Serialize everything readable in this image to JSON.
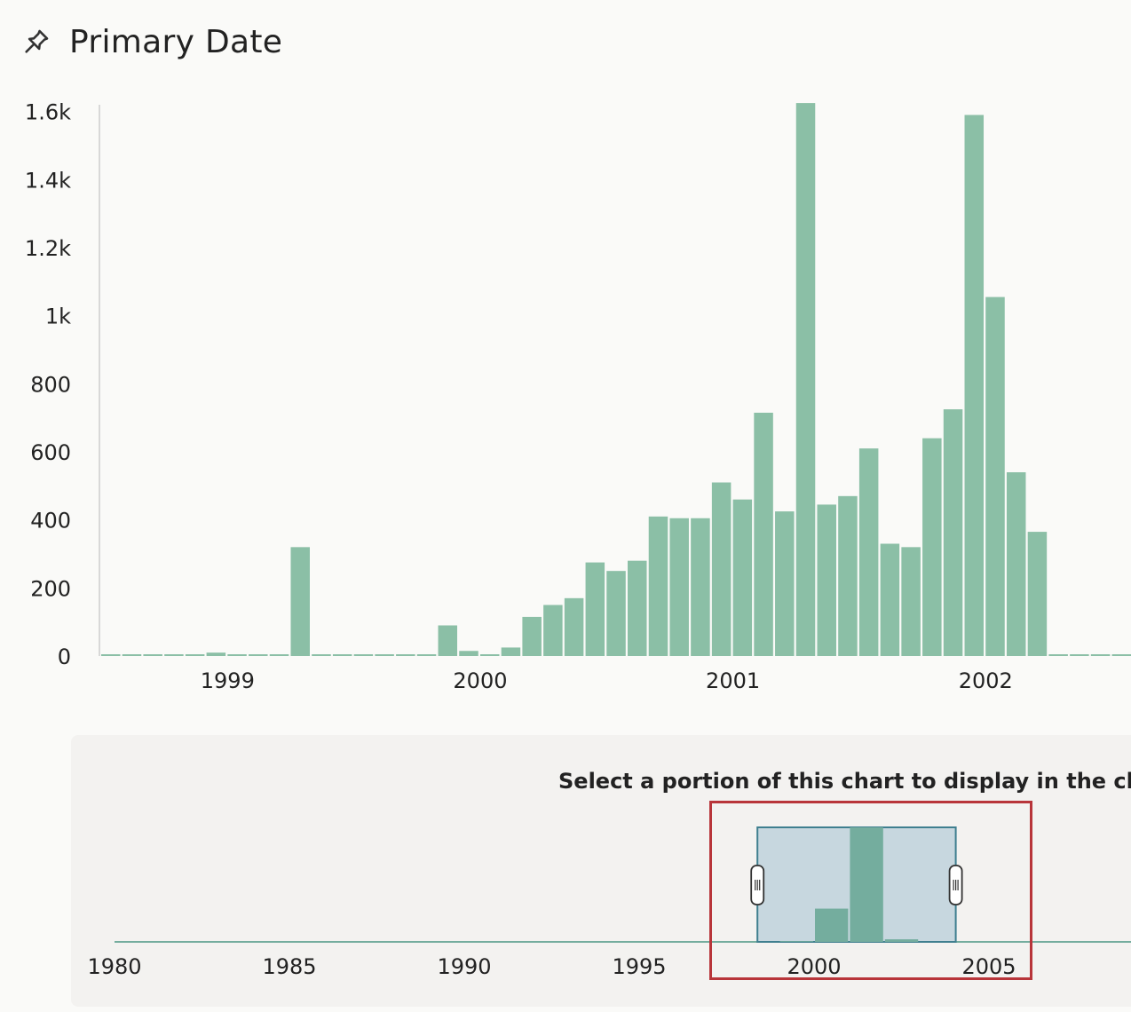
{
  "header": {
    "title": "Primary Date",
    "icon": "pin-icon"
  },
  "colors": {
    "bar": "#8bbfa6",
    "nav_bar": "#74ad9e",
    "selection_fill": "#c7d7df",
    "selection_stroke": "#3f7f8f",
    "highlight": "#b8353a"
  },
  "chart_data": [
    {
      "type": "bar",
      "title": "",
      "x_unit": "month",
      "x": [
        "1998-07",
        "1998-08",
        "1998-09",
        "1998-10",
        "1998-11",
        "1998-12",
        "1999-01",
        "1999-02",
        "1999-03",
        "1999-04",
        "1999-05",
        "1999-06",
        "1999-07",
        "1999-08",
        "1999-09",
        "1999-10",
        "1999-11",
        "1999-12",
        "2000-01",
        "2000-02",
        "2000-03",
        "2000-04",
        "2000-05",
        "2000-06",
        "2000-07",
        "2000-08",
        "2000-09",
        "2000-10",
        "2000-11",
        "2000-12",
        "2001-01",
        "2001-02",
        "2001-03",
        "2001-04",
        "2001-05",
        "2001-06",
        "2001-07",
        "2001-08",
        "2001-09",
        "2001-10",
        "2001-11",
        "2001-12",
        "2002-01",
        "2002-02",
        "2002-03",
        "2002-04",
        "2002-05",
        "2002-06",
        "2002-07",
        "2002-08"
      ],
      "values": [
        4,
        0,
        0,
        0,
        0,
        10,
        5,
        0,
        0,
        320,
        0,
        5,
        0,
        0,
        0,
        0,
        90,
        15,
        0,
        25,
        115,
        150,
        170,
        275,
        250,
        280,
        410,
        405,
        405,
        510,
        460,
        715,
        425,
        1625,
        445,
        470,
        610,
        330,
        320,
        640,
        725,
        1590,
        1055,
        540,
        365,
        0,
        0,
        0,
        0,
        0
      ],
      "xticks": [
        "1999",
        "2000",
        "2001",
        "2002"
      ],
      "yticks": [
        "0",
        "200",
        "400",
        "600",
        "800",
        "1k",
        "1.2k",
        "1.4k",
        "1.6k"
      ],
      "ylim": [
        0,
        1620
      ]
    },
    {
      "type": "bar",
      "title": "Select a portion of this chart to display in the ch",
      "x_unit": "year",
      "x": [
        "1980",
        "1981",
        "1982",
        "1983",
        "1984",
        "1985",
        "1986",
        "1987",
        "1988",
        "1989",
        "1990",
        "1991",
        "1992",
        "1993",
        "1994",
        "1995",
        "1996",
        "1997",
        "1998",
        "1999",
        "2000",
        "2001",
        "2002",
        "2003",
        "2004",
        "2005",
        "2006",
        "2007",
        "2008"
      ],
      "values": [
        0,
        0,
        0,
        0,
        0,
        0,
        0,
        0,
        0,
        0,
        0,
        0,
        0,
        0,
        0,
        0,
        0,
        0,
        0,
        40,
        1820,
        6270,
        140,
        0,
        0,
        0,
        0,
        0,
        0
      ],
      "xticks": [
        "1980",
        "1985",
        "1990",
        "1995",
        "2000",
        "2005"
      ],
      "selection": [
        "1998",
        "2004"
      ]
    }
  ]
}
